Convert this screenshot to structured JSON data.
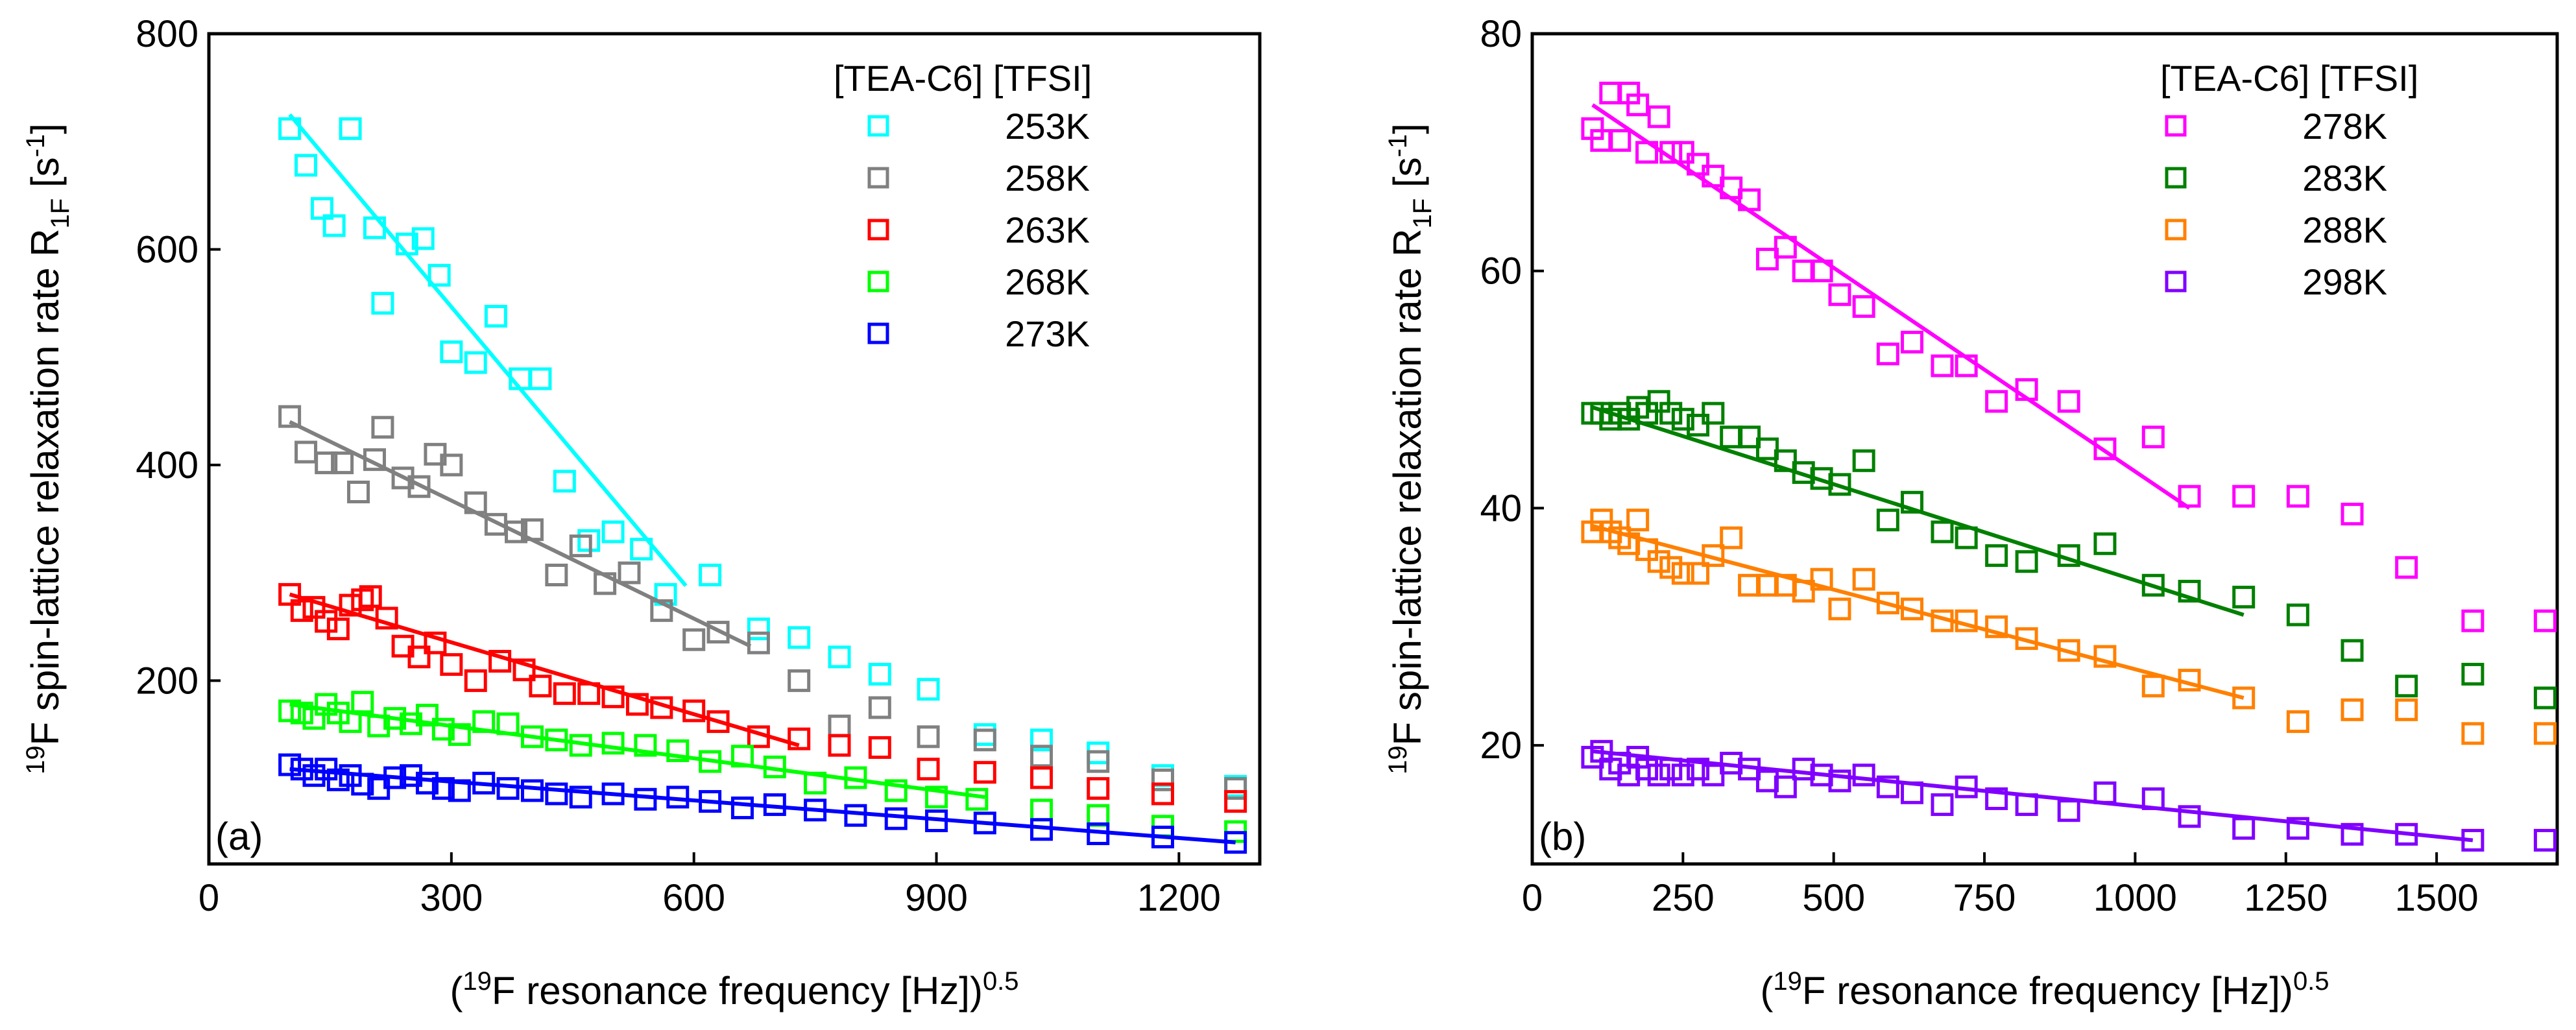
{
  "chart_data": [
    {
      "type": "scatter",
      "panel_label": "(a)",
      "legend_title": "[TEA-C6] [TFSI]",
      "xlabel": "(19F resonance frequency [Hz])0.5",
      "xlabel_parts": {
        "open": "(",
        "sup1": "19",
        "main": "F resonance frequency [Hz])",
        "sup2": "0.5"
      },
      "ylabel": "19F spin-lattice relaxation rate R1F [s-1]",
      "ylabel_parts": {
        "sup1": "19",
        "main": "F spin-lattice relaxation rate R",
        "sub": "1F",
        "bracket": " [s",
        "sup2": "-1",
        "close": "]"
      },
      "xlim": [
        0,
        1300
      ],
      "ylim": [
        30,
        800
      ],
      "xticks": [
        0,
        300,
        600,
        900,
        1200
      ],
      "yticks": [
        200,
        400,
        600,
        800
      ],
      "series": [
        {
          "name": "253K",
          "color": "#00ffff",
          "x": [
            100,
            120,
            140,
            155,
            175,
            205,
            215,
            245,
            265,
            285,
            300,
            330,
            355,
            385,
            410,
            440,
            470,
            500,
            535,
            565,
            620,
            680,
            730,
            780,
            830,
            890,
            960,
            1030,
            1100,
            1180,
            1270
          ],
          "y": [
            712,
            678,
            638,
            622,
            712,
            620,
            550,
            605,
            610,
            576,
            505,
            495,
            538,
            480,
            480,
            385,
            330,
            338,
            322,
            280,
            298,
            248,
            240,
            222,
            206,
            192,
            150,
            145,
            133,
            112,
            102
          ],
          "fit": [
            [
              100,
              725
            ],
            [
              590,
              288
            ]
          ]
        },
        {
          "name": "258K",
          "color": "#808080",
          "x": [
            100,
            120,
            145,
            165,
            185,
            205,
            215,
            240,
            260,
            280,
            300,
            330,
            355,
            380,
            400,
            430,
            460,
            490,
            520,
            560,
            600,
            630,
            680,
            730,
            780,
            830,
            890,
            960,
            1030,
            1100,
            1180,
            1270
          ],
          "y": [
            445,
            412,
            402,
            402,
            375,
            405,
            435,
            388,
            380,
            410,
            400,
            365,
            345,
            338,
            340,
            298,
            325,
            290,
            300,
            265,
            238,
            245,
            235,
            200,
            158,
            175,
            148,
            145,
            130,
            125,
            108,
            100
          ],
          "fit": [
            [
              100,
              440
            ],
            [
              670,
              232
            ]
          ]
        },
        {
          "name": "263K",
          "color": "#ff0000",
          "x": [
            100,
            115,
            130,
            145,
            160,
            175,
            190,
            200,
            220,
            240,
            260,
            280,
            300,
            330,
            360,
            390,
            410,
            440,
            470,
            500,
            530,
            560,
            600,
            630,
            680,
            730,
            780,
            830,
            890,
            960,
            1030,
            1100,
            1180,
            1270
          ],
          "y": [
            280,
            265,
            268,
            255,
            248,
            270,
            275,
            278,
            258,
            232,
            222,
            235,
            215,
            200,
            218,
            210,
            195,
            188,
            188,
            185,
            178,
            175,
            172,
            162,
            148,
            146,
            140,
            138,
            118,
            115,
            110,
            100,
            95,
            88
          ],
          "fit": [
            [
              100,
              280
            ],
            [
              730,
              140
            ]
          ]
        },
        {
          "name": "268K",
          "color": "#00ff00",
          "x": [
            100,
            115,
            130,
            145,
            160,
            175,
            190,
            210,
            230,
            250,
            270,
            290,
            310,
            340,
            370,
            400,
            430,
            460,
            500,
            540,
            580,
            620,
            660,
            700,
            750,
            800,
            850,
            900,
            950,
            1030,
            1100,
            1180,
            1270
          ],
          "y": [
            172,
            170,
            165,
            178,
            170,
            162,
            180,
            158,
            165,
            160,
            168,
            155,
            150,
            162,
            160,
            148,
            145,
            140,
            142,
            140,
            135,
            125,
            130,
            120,
            105,
            110,
            98,
            92,
            90,
            80,
            75,
            65,
            60
          ],
          "fit": [
            [
              100,
              178
            ],
            [
              960,
              92
            ]
          ]
        },
        {
          "name": "273K",
          "color": "#0000ff",
          "x": [
            100,
            115,
            130,
            145,
            160,
            175,
            190,
            210,
            230,
            250,
            270,
            290,
            310,
            340,
            370,
            400,
            430,
            460,
            500,
            540,
            580,
            620,
            660,
            700,
            750,
            800,
            850,
            900,
            960,
            1030,
            1100,
            1180,
            1270
          ],
          "y": [
            122,
            118,
            112,
            118,
            108,
            112,
            104,
            100,
            110,
            112,
            105,
            100,
            98,
            105,
            100,
            98,
            95,
            92,
            95,
            90,
            92,
            88,
            82,
            85,
            80,
            75,
            72,
            70,
            68,
            62,
            58,
            55,
            50
          ],
          "fit": [
            [
              100,
              118
            ],
            [
              1270,
              50
            ]
          ]
        }
      ]
    },
    {
      "type": "scatter",
      "panel_label": "(b)",
      "legend_title": "[TEA-C6] [TFSI]",
      "xlabel": "(19F resonance frequency [Hz])0.5",
      "xlabel_parts": {
        "open": "(",
        "sup1": "19",
        "main": "F resonance frequency [Hz])",
        "sup2": "0.5"
      },
      "ylabel": "19F spin-lattice relaxation rate R1F [s-1]",
      "ylabel_parts": {
        "sup1": "19",
        "main": "F spin-lattice relaxation rate R",
        "sub": "1F",
        "bracket": " [s",
        "sup2": "-1",
        "close": "]"
      },
      "xlim": [
        0,
        1700
      ],
      "ylim": [
        10,
        80
      ],
      "xticks": [
        0,
        250,
        500,
        750,
        1000,
        1250,
        1500
      ],
      "yticks": [
        20,
        40,
        60,
        80
      ],
      "series": [
        {
          "name": "278K",
          "color": "#ff00ff",
          "x": [
            100,
            115,
            130,
            145,
            160,
            175,
            190,
            210,
            230,
            250,
            275,
            300,
            330,
            360,
            390,
            420,
            450,
            480,
            510,
            550,
            590,
            630,
            680,
            720,
            770,
            820,
            890,
            950,
            1030,
            1090,
            1180,
            1270,
            1360,
            1450,
            1560,
            1680
          ],
          "y": [
            72,
            71,
            75,
            71,
            75,
            74,
            70,
            73,
            70,
            70,
            69,
            68,
            67,
            66,
            61,
            62,
            60,
            60,
            58,
            57,
            53,
            54,
            52,
            52,
            49,
            50,
            49,
            45,
            46,
            41,
            41,
            41,
            39.5,
            35,
            30.5,
            30.5
          ],
          "fit": [
            [
              100,
              74
            ],
            [
              1090,
              40
            ]
          ]
        },
        {
          "name": "283K",
          "color": "#008000",
          "x": [
            100,
            115,
            130,
            145,
            160,
            175,
            190,
            210,
            230,
            250,
            275,
            300,
            330,
            360,
            390,
            420,
            450,
            480,
            510,
            550,
            590,
            630,
            680,
            720,
            770,
            820,
            890,
            950,
            1030,
            1090,
            1180,
            1270,
            1360,
            1450,
            1560,
            1680
          ],
          "y": [
            48,
            48,
            47.5,
            48,
            47.5,
            48.5,
            48,
            49,
            48,
            47.5,
            47,
            48,
            46,
            46,
            45,
            44,
            43,
            42.5,
            42,
            44,
            39,
            40.5,
            38,
            37.5,
            36,
            35.5,
            36,
            37,
            33.5,
            33,
            32.5,
            31,
            28,
            25,
            26,
            24
          ],
          "fit": [
            [
              100,
              48.5
            ],
            [
              1180,
              31
            ]
          ]
        },
        {
          "name": "288K",
          "color": "#ff8000",
          "x": [
            100,
            115,
            130,
            145,
            160,
            175,
            190,
            210,
            230,
            250,
            275,
            300,
            330,
            360,
            390,
            420,
            450,
            480,
            510,
            550,
            590,
            630,
            680,
            720,
            770,
            820,
            890,
            950,
            1030,
            1090,
            1180,
            1270,
            1360,
            1450,
            1560,
            1680
          ],
          "y": [
            38,
            39,
            38,
            37.5,
            37,
            39,
            36.5,
            35.5,
            35,
            34.5,
            34.5,
            36,
            37.5,
            33.5,
            33.5,
            33.5,
            33,
            34,
            31.5,
            34,
            32,
            31.5,
            30.5,
            30.5,
            30,
            29,
            28,
            27.5,
            25,
            25.5,
            24,
            22,
            23,
            23,
            21,
            21
          ],
          "fit": [
            [
              100,
              38.5
            ],
            [
              1180,
              24
            ]
          ]
        },
        {
          "name": "298K",
          "color": "#8000ff",
          "x": [
            100,
            115,
            130,
            145,
            160,
            175,
            190,
            210,
            230,
            250,
            275,
            300,
            330,
            360,
            390,
            420,
            450,
            480,
            510,
            550,
            590,
            630,
            680,
            720,
            770,
            820,
            890,
            950,
            1030,
            1090,
            1180,
            1270,
            1360,
            1450,
            1560,
            1680
          ],
          "y": [
            19,
            19.5,
            18,
            18.5,
            17.5,
            19,
            18,
            17.5,
            18,
            17.5,
            18,
            17.5,
            18.5,
            18,
            17,
            16.5,
            18,
            17.5,
            17,
            17.5,
            16.5,
            16,
            15,
            16.5,
            15.5,
            15,
            14.5,
            16,
            15.5,
            14,
            13,
            13,
            12.5,
            12.5,
            12,
            12
          ],
          "fit": [
            [
              100,
              19.5
            ],
            [
              1560,
              12
            ]
          ]
        }
      ]
    }
  ]
}
